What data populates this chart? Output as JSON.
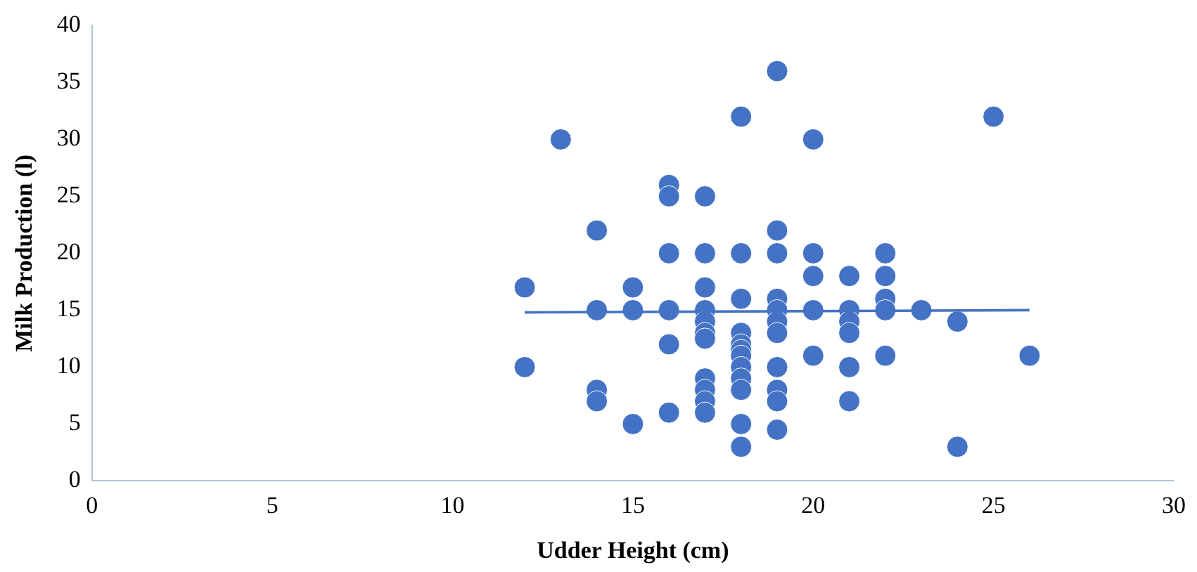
{
  "chart_data": {
    "type": "scatter",
    "xlabel": "Udder Height (cm)",
    "ylabel": "Milk Production (l)",
    "xlim": [
      0,
      30
    ],
    "xticks": [
      0,
      5,
      10,
      15,
      20,
      25,
      30
    ],
    "ylim": [
      0,
      40
    ],
    "yticks": [
      0,
      5,
      10,
      15,
      20,
      25,
      30,
      35,
      40
    ],
    "grid": false,
    "marker": "circle",
    "series": [
      {
        "color": "#4472c4",
        "x": [
          12,
          12,
          13,
          14,
          14,
          14,
          14,
          15,
          15,
          15,
          16,
          16,
          16,
          16,
          16,
          16,
          17,
          17,
          17,
          17,
          17,
          17,
          17,
          17,
          17,
          17,
          17,
          18,
          18,
          18,
          18,
          18,
          18,
          18,
          18,
          18,
          18,
          18,
          18,
          19,
          19,
          19,
          19,
          19,
          19,
          19,
          19,
          19,
          19,
          19,
          20,
          20,
          20,
          20,
          20,
          21,
          21,
          21,
          21,
          21,
          21,
          22,
          22,
          22,
          22,
          22,
          23,
          24,
          24,
          25,
          26
        ],
        "values": [
          17,
          10,
          30,
          22,
          15,
          8,
          7,
          17,
          15,
          5,
          26,
          25,
          20,
          15,
          12,
          6,
          25,
          20,
          17,
          15,
          14,
          13,
          12.5,
          9,
          8,
          7,
          6,
          32,
          20,
          16,
          13,
          12,
          11.5,
          11,
          10,
          9,
          8,
          5,
          3,
          36,
          22,
          20,
          16,
          15,
          14,
          13,
          10,
          8,
          7,
          4.5,
          30,
          20,
          18,
          15,
          11,
          18,
          15,
          14,
          13,
          10,
          7,
          20,
          18,
          16,
          15,
          11,
          15,
          14,
          3,
          32,
          11
        ]
      },
      {
        "type": "line",
        "color": "#4472c4",
        "x": [
          12,
          26
        ],
        "values": [
          14.8,
          15
        ],
        "marker": "none"
      }
    ]
  }
}
